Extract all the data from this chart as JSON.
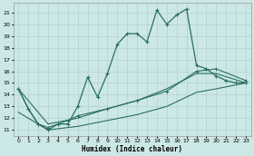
{
  "xlabel": "Humidex (Indice chaleur)",
  "ylabel": "",
  "bg_color": "#cce8e6",
  "line_color": "#2a6e63",
  "grid_color": "#b8d4d2",
  "xlim": [
    -0.5,
    23.5
  ],
  "ylim": [
    10.5,
    21.8
  ],
  "yticks": [
    11,
    12,
    13,
    14,
    15,
    16,
    17,
    18,
    19,
    20,
    21
  ],
  "xticks": [
    0,
    1,
    2,
    3,
    4,
    5,
    6,
    7,
    8,
    9,
    10,
    11,
    12,
    13,
    14,
    15,
    16,
    17,
    18,
    19,
    20,
    21,
    22,
    23
  ],
  "line1_x": [
    0,
    1,
    2,
    3,
    4,
    5,
    6,
    7,
    8,
    9,
    10,
    11,
    12,
    13,
    14,
    15,
    16,
    17,
    18,
    19,
    20,
    21,
    22,
    23
  ],
  "line1_y": [
    14.5,
    12.8,
    11.5,
    11.0,
    11.5,
    11.5,
    13.0,
    15.5,
    13.8,
    15.8,
    18.3,
    19.2,
    19.2,
    18.5,
    21.2,
    20.0,
    20.8,
    21.3,
    16.5,
    16.2,
    15.6,
    15.2,
    15.0,
    15.0
  ],
  "line2_x": [
    0,
    1,
    2,
    3,
    4,
    5,
    6,
    9,
    12,
    15,
    18,
    20,
    23
  ],
  "line2_y": [
    14.5,
    12.8,
    11.5,
    11.2,
    11.5,
    11.8,
    12.2,
    12.8,
    13.5,
    14.3,
    16.0,
    16.2,
    15.2
  ],
  "line3_x": [
    0,
    3,
    6,
    9,
    12,
    15,
    18,
    20,
    23
  ],
  "line3_y": [
    14.5,
    11.5,
    12.0,
    12.8,
    13.5,
    14.5,
    15.8,
    15.8,
    15.0
  ],
  "line4_x": [
    0,
    3,
    6,
    9,
    12,
    15,
    18,
    20,
    23
  ],
  "line4_y": [
    12.5,
    11.0,
    11.3,
    11.8,
    12.3,
    13.0,
    14.2,
    14.5,
    15.0
  ]
}
